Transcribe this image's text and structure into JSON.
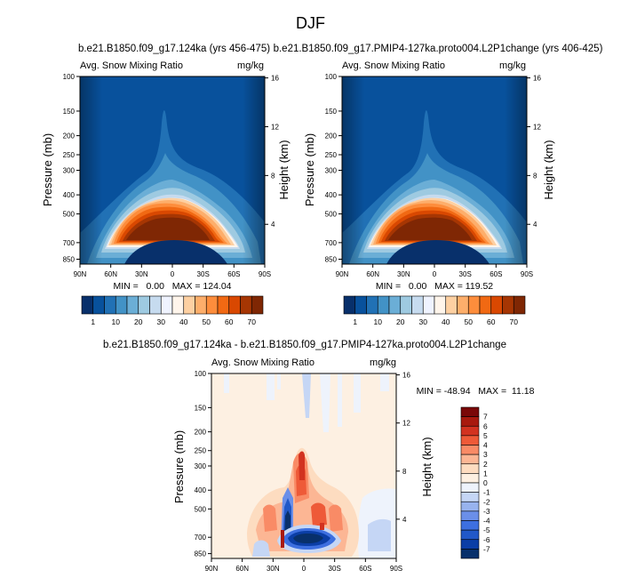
{
  "page_title": "DJF",
  "colors": {
    "blues": [
      "#08306b",
      "#08519c",
      "#2171b5",
      "#4292c6",
      "#6baed6",
      "#9ecae1",
      "#c6dbef",
      "#eff3ff"
    ],
    "reds": [
      "#fff5eb",
      "#fdd0a2",
      "#fdae6b",
      "#fd8d3c",
      "#f16913",
      "#d94801",
      "#a63603",
      "#7f2704"
    ],
    "anomaly": [
      "#08306b",
      "#0b3ea6",
      "#2158c8",
      "#3d6fe0",
      "#6b8fe8",
      "#98b3ee",
      "#c5d6f5",
      "#eef3fc",
      "#fdf0e2",
      "#fddcc0",
      "#fcb694",
      "#f98b66",
      "#ee5a38",
      "#d23220",
      "#a8190e",
      "#7a0808"
    ]
  },
  "chart_data": [
    {
      "type": "heatmap",
      "title": "b.e21.B1850.f09_g17.124ka (yrs 456-475)",
      "left_label": "Avg. Snow Mixing Ratio",
      "right_label": "mg/kg",
      "xlabel": "",
      "ylabel": "Pressure (mb)",
      "y2label": "Height (km)",
      "x_ticks": [
        "90N",
        "60N",
        "30N",
        "0",
        "30S",
        "60S",
        "90S"
      ],
      "y_ticks": [
        100,
        150,
        200,
        250,
        300,
        400,
        500,
        700,
        850
      ],
      "height_ticks": [
        16,
        12,
        8,
        4
      ],
      "stats": "MIN =   0.00   MAX = 124.04",
      "min": 0.0,
      "max": 124.04,
      "colorbar": {
        "labels": [
          "1",
          "10",
          "20",
          "30",
          "40",
          "50",
          "60",
          "70"
        ]
      }
    },
    {
      "type": "heatmap",
      "title": "b.e21.B1850.f09_g17.PMIP4-127ka.proto004.L2P1change (yrs 406-425)",
      "left_label": "Avg. Snow Mixing Ratio",
      "right_label": "mg/kg",
      "xlabel": "",
      "ylabel": "Pressure (mb)",
      "y2label": "Height (km)",
      "x_ticks": [
        "90N",
        "60N",
        "30N",
        "0",
        "30S",
        "60S",
        "90S"
      ],
      "y_ticks": [
        100,
        150,
        200,
        250,
        300,
        400,
        500,
        700,
        850
      ],
      "height_ticks": [
        16,
        12,
        8,
        4
      ],
      "stats": "MIN =   0.00   MAX = 119.52",
      "min": 0.0,
      "max": 119.52,
      "colorbar": {
        "labels": [
          "1",
          "10",
          "20",
          "30",
          "40",
          "50",
          "60",
          "70"
        ]
      }
    },
    {
      "type": "heatmap",
      "title": "b.e21.B1850.f09_g17.124ka - b.e21.B1850.f09_g17.PMIP4-127ka.proto004.L2P1change",
      "left_label": "Avg. Snow Mixing Ratio",
      "right_label": "mg/kg",
      "xlabel": "",
      "ylabel": "Pressure (mb)",
      "y2label": "Height (km)",
      "x_ticks": [
        "90N",
        "60N",
        "30N",
        "0",
        "30S",
        "60S",
        "90S"
      ],
      "y_ticks": [
        100,
        150,
        200,
        250,
        300,
        400,
        500,
        700,
        850
      ],
      "height_ticks": [
        16,
        12,
        8,
        4
      ],
      "stats": "MIN = -48.94   MAX =  11.18",
      "min": -48.94,
      "max": 11.18,
      "colorbar": {
        "labels": [
          "7",
          "6",
          "5",
          "4",
          "3",
          "2",
          "1",
          "0",
          "-1",
          "-2",
          "-3",
          "-4",
          "-5",
          "-6",
          "-7"
        ]
      }
    }
  ]
}
